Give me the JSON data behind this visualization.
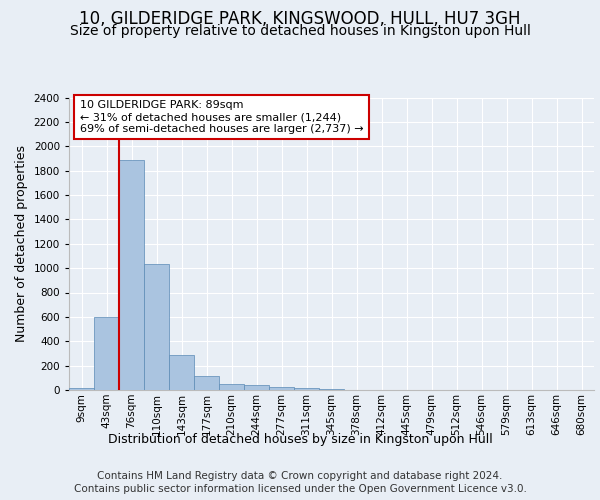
{
  "title": "10, GILDERIDGE PARK, KINGSWOOD, HULL, HU7 3GH",
  "subtitle": "Size of property relative to detached houses in Kingston upon Hull",
  "xlabel": "Distribution of detached houses by size in Kingston upon Hull",
  "ylabel": "Number of detached properties",
  "bar_labels": [
    "9sqm",
    "43sqm",
    "76sqm",
    "110sqm",
    "143sqm",
    "177sqm",
    "210sqm",
    "244sqm",
    "277sqm",
    "311sqm",
    "345sqm",
    "378sqm",
    "412sqm",
    "445sqm",
    "479sqm",
    "512sqm",
    "546sqm",
    "579sqm",
    "613sqm",
    "646sqm",
    "680sqm"
  ],
  "bar_values": [
    20,
    600,
    1890,
    1035,
    285,
    115,
    50,
    40,
    28,
    18,
    5,
    2,
    2,
    1,
    1,
    0,
    0,
    0,
    0,
    0,
    0
  ],
  "bar_color": "#aac4e0",
  "bar_edge_color": "#5a8ab5",
  "property_line_idx": 2,
  "property_sqm": 89,
  "annotation_text": "10 GILDERIDGE PARK: 89sqm\n← 31% of detached houses are smaller (1,244)\n69% of semi-detached houses are larger (2,737) →",
  "annotation_box_color": "#ffffff",
  "annotation_box_edge_color": "#cc0000",
  "vline_color": "#cc0000",
  "ylim": [
    0,
    2400
  ],
  "yticks": [
    0,
    200,
    400,
    600,
    800,
    1000,
    1200,
    1400,
    1600,
    1800,
    2000,
    2200,
    2400
  ],
  "footer_line1": "Contains HM Land Registry data © Crown copyright and database right 2024.",
  "footer_line2": "Contains public sector information licensed under the Open Government Licence v3.0.",
  "background_color": "#e8eef5",
  "plot_background_color": "#e8eef5",
  "grid_color": "#ffffff",
  "title_fontsize": 12,
  "subtitle_fontsize": 10,
  "axis_label_fontsize": 9,
  "tick_fontsize": 7.5,
  "footer_fontsize": 7.5
}
